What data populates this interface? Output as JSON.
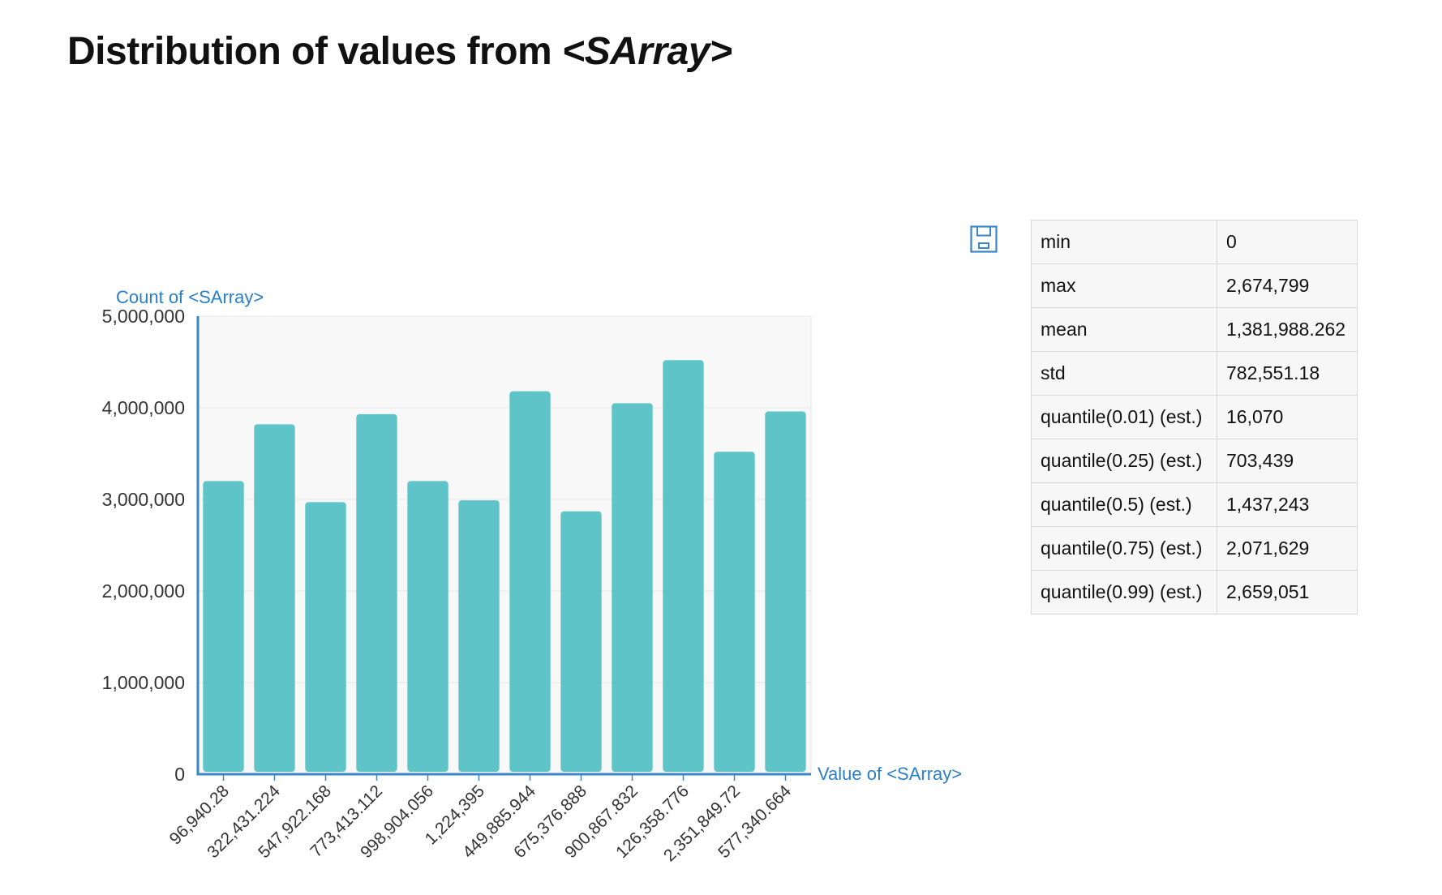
{
  "title": {
    "text": "Distribution of values from ",
    "emphasis": "<SArray>",
    "suffix": ""
  },
  "chart_data": {
    "type": "bar",
    "ylabel": "Count of <SArray>",
    "xlabel": "Value of <SArray>",
    "ylim": [
      0,
      5000000
    ],
    "yticks": [
      "0",
      "1,000,000",
      "2,000,000",
      "3,000,000",
      "4,000,000",
      "5,000,000"
    ],
    "categories": [
      "96,940.28",
      "322,431.224",
      "547,922.168",
      "773,413.112",
      "998,904.056",
      "1,224,395",
      "449,885.944",
      "675,376.888",
      "900,867.832",
      "126,358.776",
      "2,351,849.72",
      "577,340.664"
    ],
    "values": [
      3200000,
      3820000,
      2970000,
      3930000,
      3200000,
      2990000,
      4180000,
      2870000,
      4050000,
      4520000,
      3520000,
      3960000
    ],
    "grid": true,
    "bar_color": "#5ec4c8",
    "axis_color": "#3a86c8"
  },
  "save_icon": {
    "name": "save-icon",
    "color": "#3a86c8"
  },
  "stats": [
    {
      "label": "min",
      "value": "0"
    },
    {
      "label": "max",
      "value": "2,674,799"
    },
    {
      "label": "mean",
      "value": "1,381,988.262"
    },
    {
      "label": "std",
      "value": "782,551.18"
    },
    {
      "label": "quantile(0.01) (est.)",
      "value": "16,070"
    },
    {
      "label": "quantile(0.25) (est.)",
      "value": "703,439"
    },
    {
      "label": "quantile(0.5) (est.)",
      "value": "1,437,243"
    },
    {
      "label": "quantile(0.75) (est.)",
      "value": "2,071,629"
    },
    {
      "label": "quantile(0.99) (est.)",
      "value": "2,659,051"
    }
  ]
}
